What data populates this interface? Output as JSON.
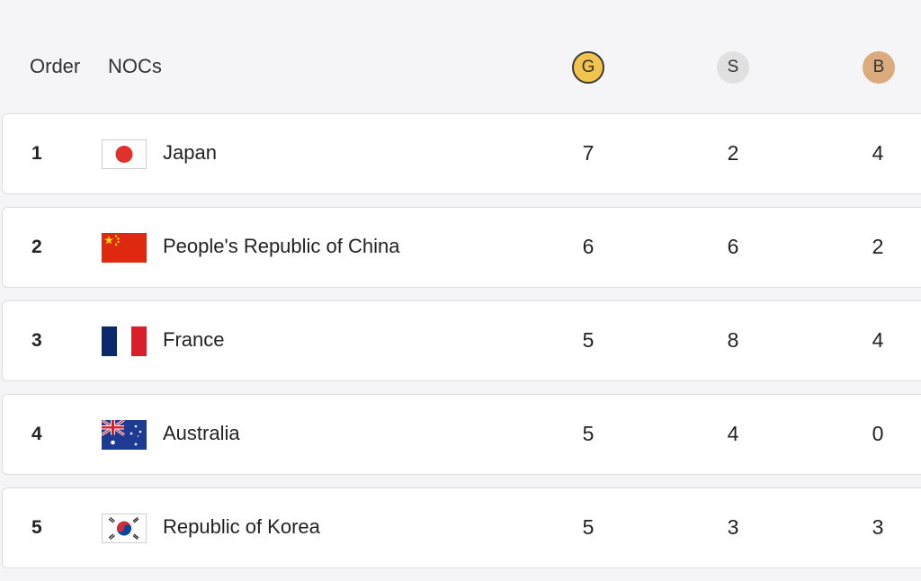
{
  "header": {
    "order_label": "Order",
    "nocs_label": "NOCs",
    "gold_label": "G",
    "silver_label": "S",
    "bronze_label": "B"
  },
  "colors": {
    "gold": "#f2c44f",
    "silver": "#e0e0e0",
    "bronze": "#dbab7d"
  },
  "rows": [
    {
      "order": "1",
      "country": "Japan",
      "flag_icon": "japan-flag-icon",
      "gold": "7",
      "silver": "2",
      "bronze": "4"
    },
    {
      "order": "2",
      "country": "People's Republic of China",
      "flag_icon": "china-flag-icon",
      "gold": "6",
      "silver": "6",
      "bronze": "2"
    },
    {
      "order": "3",
      "country": "France",
      "flag_icon": "france-flag-icon",
      "gold": "5",
      "silver": "8",
      "bronze": "4"
    },
    {
      "order": "4",
      "country": "Australia",
      "flag_icon": "australia-flag-icon",
      "gold": "5",
      "silver": "4",
      "bronze": "0"
    },
    {
      "order": "5",
      "country": "Republic of Korea",
      "flag_icon": "korea-flag-icon",
      "gold": "5",
      "silver": "3",
      "bronze": "3"
    }
  ]
}
